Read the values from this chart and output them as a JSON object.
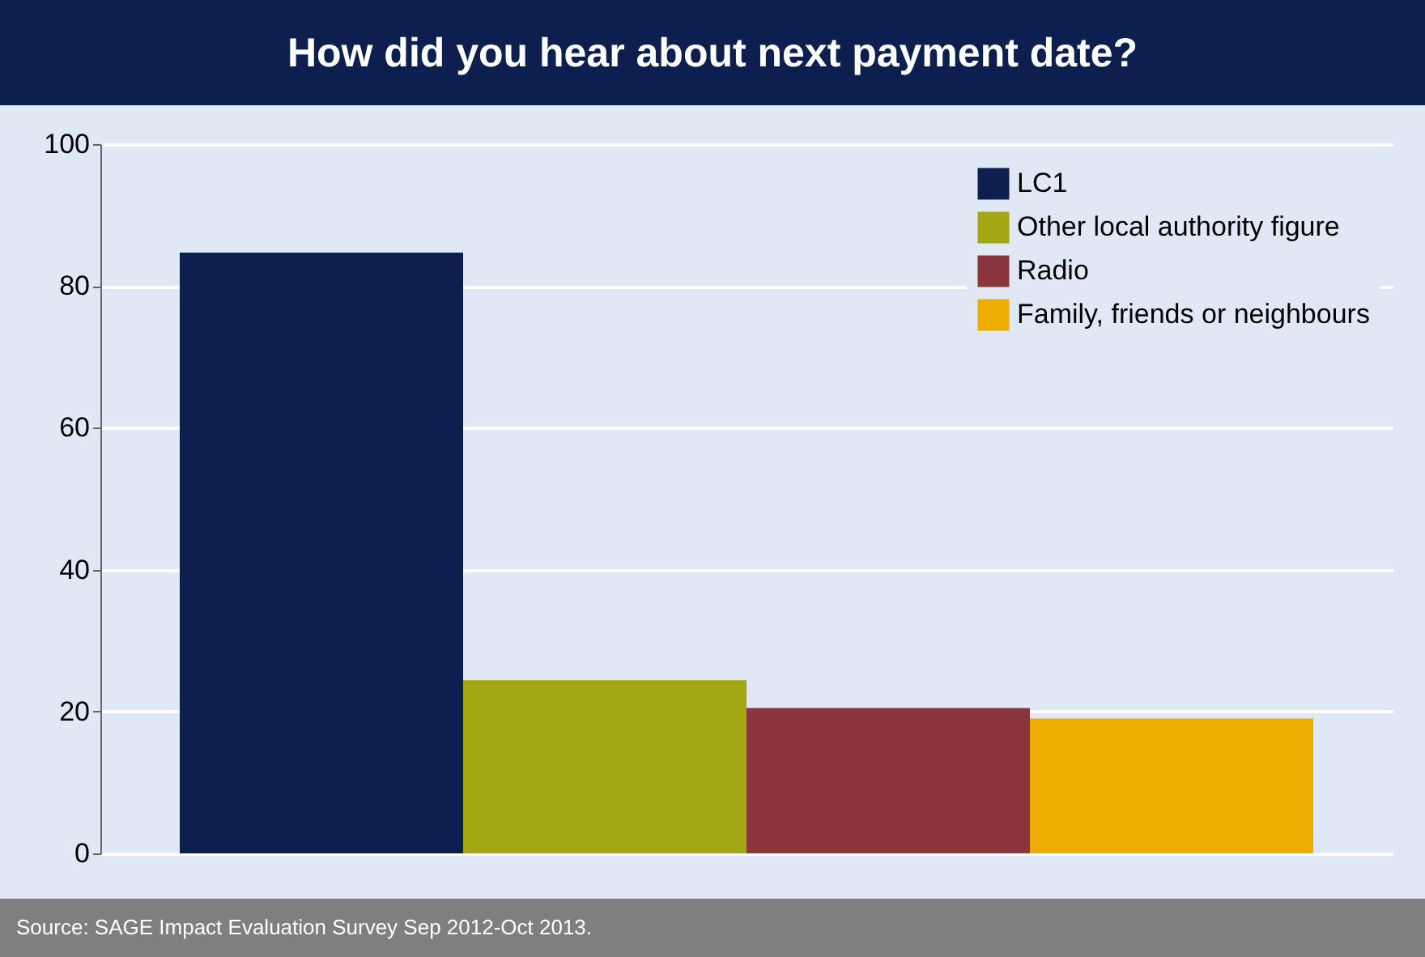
{
  "chart_data": {
    "type": "bar",
    "title": "How did you hear about next payment date?",
    "categories": [
      null
    ],
    "series": [
      {
        "name": "LC1",
        "color": "#0d1f4f",
        "values": [
          84.7
        ]
      },
      {
        "name": "Other local authority figure",
        "color": "#a3a713",
        "values": [
          24.4
        ]
      },
      {
        "name": "Radio",
        "color": "#8b363c",
        "values": [
          20.5
        ]
      },
      {
        "name": "Family, friends or neighbours",
        "color": "#edad00",
        "values": [
          19
        ]
      }
    ],
    "ylim": [
      0,
      100
    ],
    "yticks": [
      0,
      20,
      40,
      60,
      80,
      100
    ],
    "grid": "y",
    "legend": "top right",
    "tick_labels": "y",
    "annotations": [
      "Source: SAGE Impact Evaluation Survey Sep 2012-Oct 2013."
    ]
  }
}
